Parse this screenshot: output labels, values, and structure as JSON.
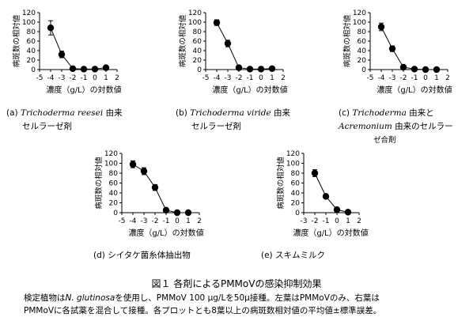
{
  "figure": {
    "title": "図１ 各剤によるPMMoVの感染抑制効果",
    "note_line1_a": "検定植物は",
    "note_line1_italic": "N. glutinosa",
    "note_line1_b": "を使用し、PMMoV 100 μg/Lを50μ接種。左葉はPMMoVのみ、右葉は",
    "note_line2": "PMMoVに各試薬を混合して接種。各プロットとも8葉以上の病斑数相対値の平均値±標準誤差。"
  },
  "chart_data": [
    {
      "type": "line",
      "panel": "a",
      "ylabel": "病斑数の相対値",
      "xlabel": "濃度（g/L）の対数値",
      "xlim": [
        -5,
        2
      ],
      "ylim": [
        0,
        120
      ],
      "xticks": [
        -5,
        -4,
        -3,
        -2,
        -1,
        0,
        1,
        2
      ],
      "yticks": [
        0,
        20,
        40,
        60,
        80,
        100,
        120
      ],
      "x": [
        -4,
        -3,
        -2,
        -1,
        0,
        1
      ],
      "y": [
        88,
        32,
        2,
        1,
        1,
        4
      ],
      "error": [
        15,
        7,
        2,
        1,
        1,
        2
      ],
      "caption": {
        "prefix": "(a)",
        "italic": "Trichoderma reesei",
        "suffix": " 由来",
        "line2": "セルラーゼ剤",
        "line3": ""
      }
    },
    {
      "type": "line",
      "panel": "b",
      "ylabel": "病斑数の相対値",
      "xlabel": "濃度（g/L）の対数値",
      "xlim": [
        -5,
        2
      ],
      "ylim": [
        0,
        120
      ],
      "xticks": [
        -5,
        -4,
        -3,
        -2,
        -1,
        0,
        1,
        2
      ],
      "yticks": [
        0,
        20,
        40,
        60,
        80,
        100,
        120
      ],
      "x": [
        -4,
        -3,
        -2,
        -1,
        0,
        1
      ],
      "y": [
        99,
        55,
        4,
        1,
        1,
        2
      ],
      "error": [
        6,
        7,
        2,
        1,
        1,
        1
      ],
      "caption": {
        "prefix": "(b)",
        "italic": "Trichoderma viride",
        "suffix": " 由来",
        "line2": "セルラーゼ剤",
        "line3": ""
      }
    },
    {
      "type": "line",
      "panel": "c",
      "ylabel": "病斑数の相対値",
      "xlabel": "濃度（g/L）の対数値",
      "xlim": [
        -5,
        2
      ],
      "ylim": [
        0,
        120
      ],
      "xticks": [
        -5,
        -4,
        -3,
        -2,
        -1,
        0,
        1,
        2
      ],
      "yticks": [
        0,
        20,
        40,
        60,
        80,
        100,
        120
      ],
      "x": [
        -4,
        -3,
        -2,
        -1,
        0,
        1
      ],
      "y": [
        90,
        44,
        5,
        1,
        0,
        0
      ],
      "error": [
        8,
        6,
        2,
        1,
        1,
        1
      ],
      "caption": {
        "prefix": "(c)",
        "italic": "Trichoderma",
        "suffix": " 由来と",
        "line2_italic": "Acremonium",
        "line2": " 由来のセルラー",
        "line3": "ゼ合剤"
      }
    },
    {
      "type": "line",
      "panel": "d",
      "ylabel": "病斑数の相対値",
      "xlabel": "濃度（g/L）の対数値",
      "xlim": [
        -5,
        2
      ],
      "ylim": [
        0,
        120
      ],
      "xticks": [
        -5,
        -4,
        -3,
        -2,
        -1,
        0,
        1,
        2
      ],
      "yticks": [
        0,
        20,
        40,
        60,
        80,
        100,
        120
      ],
      "x": [
        -4,
        -3,
        -2,
        -1,
        0,
        1
      ],
      "y": [
        98,
        84,
        51,
        5,
        0,
        0
      ],
      "error": [
        7,
        7,
        6,
        2,
        1,
        1
      ],
      "caption": {
        "prefix": "(d)",
        "italic": "",
        "suffix": " シイタケ菌糸体抽出物",
        "line2": "",
        "line3": ""
      }
    },
    {
      "type": "line",
      "panel": "e",
      "ylabel": "病斑数の相対値",
      "xlabel": "濃度（g/L）の対数値",
      "xlim": [
        -3,
        2
      ],
      "ylim": [
        0,
        120
      ],
      "xticks": [
        -3,
        -2,
        -1,
        0,
        1,
        2
      ],
      "yticks": [
        0,
        20,
        40,
        60,
        80,
        100,
        120
      ],
      "x": [
        -2,
        -1,
        0,
        1
      ],
      "y": [
        80,
        33,
        6,
        1
      ],
      "error": [
        7,
        3,
        2,
        1
      ],
      "caption": {
        "prefix": "(e)",
        "italic": "",
        "suffix": " スキムミルク",
        "line2": "",
        "line3": ""
      }
    }
  ]
}
